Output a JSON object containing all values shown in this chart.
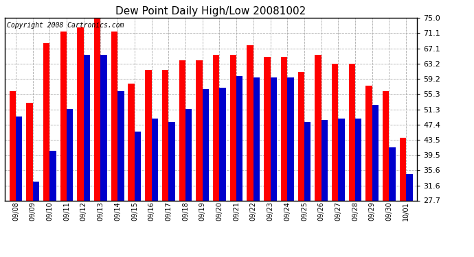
{
  "title": "Dew Point Daily High/Low 20081002",
  "copyright": "Copyright 2008 Cartronics.com",
  "dates": [
    "09/08",
    "09/09",
    "09/10",
    "09/11",
    "09/12",
    "09/13",
    "09/14",
    "09/15",
    "09/16",
    "09/17",
    "09/18",
    "09/19",
    "09/20",
    "09/21",
    "09/22",
    "09/23",
    "09/24",
    "09/25",
    "09/26",
    "09/27",
    "09/28",
    "09/29",
    "09/30",
    "10/01"
  ],
  "highs": [
    56.0,
    53.0,
    68.5,
    71.5,
    72.5,
    76.0,
    71.5,
    58.0,
    61.5,
    61.5,
    64.0,
    64.0,
    65.5,
    65.5,
    68.0,
    65.0,
    65.0,
    61.0,
    65.5,
    63.2,
    63.2,
    57.5,
    56.0,
    44.0
  ],
  "lows": [
    49.5,
    32.5,
    40.5,
    51.5,
    65.5,
    65.5,
    56.0,
    45.5,
    49.0,
    48.0,
    51.5,
    56.5,
    57.0,
    60.0,
    59.5,
    59.5,
    59.5,
    48.0,
    48.5,
    49.0,
    49.0,
    52.5,
    41.5,
    34.5
  ],
  "yticks": [
    27.7,
    31.6,
    35.6,
    39.5,
    43.5,
    47.4,
    51.3,
    55.3,
    59.2,
    63.2,
    67.1,
    71.1,
    75.0
  ],
  "ymin": 27.7,
  "ymax": 75.0,
  "bar_width": 0.38,
  "high_color": "#ff0000",
  "low_color": "#0000cc",
  "bg_color": "#ffffff",
  "grid_color": "#aaaaaa",
  "title_fontsize": 11,
  "copyright_fontsize": 7,
  "tick_fontsize": 8,
  "xtick_fontsize": 7
}
